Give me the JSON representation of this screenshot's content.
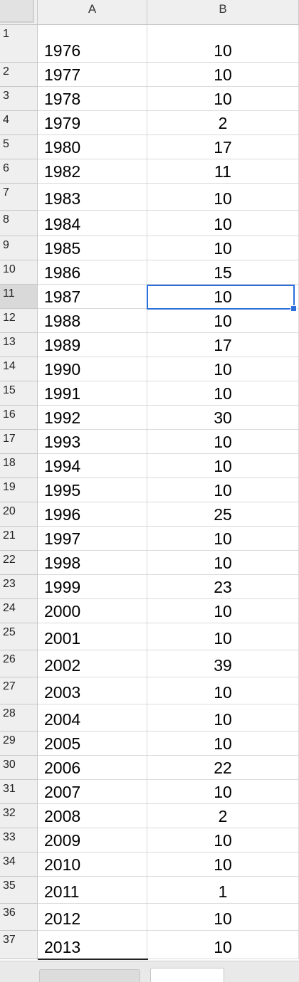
{
  "columns": {
    "a": "A",
    "b": "B"
  },
  "rows": [
    {
      "num": "1",
      "year": "1976",
      "value": "10"
    },
    {
      "num": "2",
      "year": "1977",
      "value": "10"
    },
    {
      "num": "3",
      "year": "1978",
      "value": "10"
    },
    {
      "num": "4",
      "year": "1979",
      "value": "2"
    },
    {
      "num": "5",
      "year": "1980",
      "value": "17"
    },
    {
      "num": "6",
      "year": "1982",
      "value": "11"
    },
    {
      "num": "7",
      "year": "1983",
      "value": "10"
    },
    {
      "num": "8",
      "year": "1984",
      "value": "10"
    },
    {
      "num": "9",
      "year": "1985",
      "value": "10"
    },
    {
      "num": "10",
      "year": "1986",
      "value": "15"
    },
    {
      "num": "11",
      "year": "1987",
      "value": "10"
    },
    {
      "num": "12",
      "year": "1988",
      "value": "10"
    },
    {
      "num": "13",
      "year": "1989",
      "value": "17"
    },
    {
      "num": "14",
      "year": "1990",
      "value": "10"
    },
    {
      "num": "15",
      "year": "1991",
      "value": "10"
    },
    {
      "num": "16",
      "year": "1992",
      "value": "30"
    },
    {
      "num": "17",
      "year": "1993",
      "value": "10"
    },
    {
      "num": "18",
      "year": "1994",
      "value": "10"
    },
    {
      "num": "19",
      "year": "1995",
      "value": "10"
    },
    {
      "num": "20",
      "year": "1996",
      "value": "25"
    },
    {
      "num": "21",
      "year": "1997",
      "value": "10"
    },
    {
      "num": "22",
      "year": "1998",
      "value": "10"
    },
    {
      "num": "23",
      "year": "1999",
      "value": "23"
    },
    {
      "num": "24",
      "year": "2000",
      "value": "10"
    },
    {
      "num": "25",
      "year": "2001",
      "value": "10"
    },
    {
      "num": "26",
      "year": "2002",
      "value": "39"
    },
    {
      "num": "27",
      "year": "2003",
      "value": "10"
    },
    {
      "num": "28",
      "year": "2004",
      "value": "10"
    },
    {
      "num": "29",
      "year": "2005",
      "value": "10"
    },
    {
      "num": "30",
      "year": "2006",
      "value": "22"
    },
    {
      "num": "31",
      "year": "2007",
      "value": "10"
    },
    {
      "num": "32",
      "year": "2008",
      "value": "2"
    },
    {
      "num": "33",
      "year": "2009",
      "value": "10"
    },
    {
      "num": "34",
      "year": "2010",
      "value": "10"
    },
    {
      "num": "35",
      "year": "2011",
      "value": "1"
    },
    {
      "num": "36",
      "year": "2012",
      "value": "10"
    },
    {
      "num": "37",
      "year": "2013",
      "value": "10"
    }
  ],
  "selection": {
    "row": "11",
    "column": "B",
    "value": "10"
  },
  "colors": {
    "selection": "#2a6fdb",
    "header_bg": "#efefef",
    "grid": "#dadada"
  }
}
